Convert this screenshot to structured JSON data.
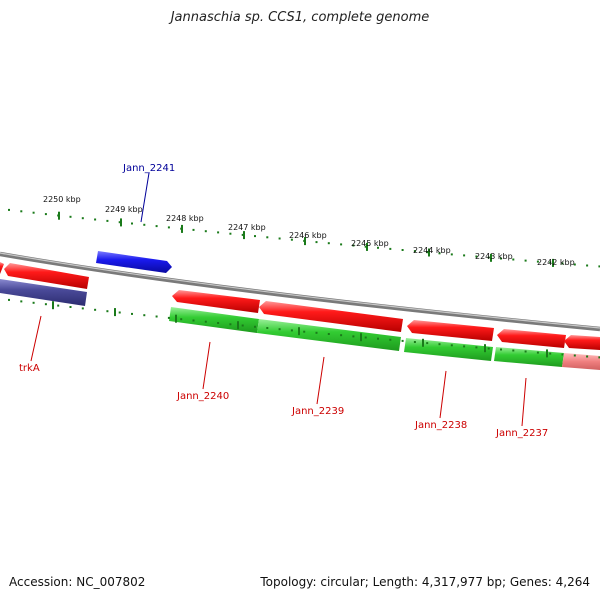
{
  "title": "Jannaschia sp. CCS1, complete genome",
  "footer": {
    "accession": "Accession: NC_007802",
    "topology": "Topology: circular; Length: 4,317,977 bp; Genes: 4,264"
  },
  "colors": {
    "backbone": "#888888",
    "forward_gene": "#1a1aee",
    "reverse_gene": "#ee1111",
    "cds": "#33cc33",
    "rna_like": "#4a4a99",
    "tick": "#1a7a1a",
    "label_reverse": "#cc0000",
    "label_forward": "#000099"
  },
  "scale_labels": [
    "2250 kbp",
    "2249 kbp",
    "2248 kbp",
    "2247 kbp",
    "2246 kbp",
    "2245 kbp",
    "2244 kbp",
    "2243 kbp",
    "2242 kbp"
  ],
  "gene_labels": [
    {
      "id": "jann-2241",
      "text": "Jann_2241",
      "strand": "forward"
    },
    {
      "id": "trka",
      "text": "trkA",
      "strand": "reverse"
    },
    {
      "id": "jann-2240",
      "text": "Jann_2240",
      "strand": "reverse"
    },
    {
      "id": "jann-2239",
      "text": "Jann_2239",
      "strand": "reverse"
    },
    {
      "id": "jann-2238",
      "text": "Jann_2238",
      "strand": "reverse"
    },
    {
      "id": "jann-2237",
      "text": "Jann_2237",
      "strand": "reverse"
    }
  ]
}
